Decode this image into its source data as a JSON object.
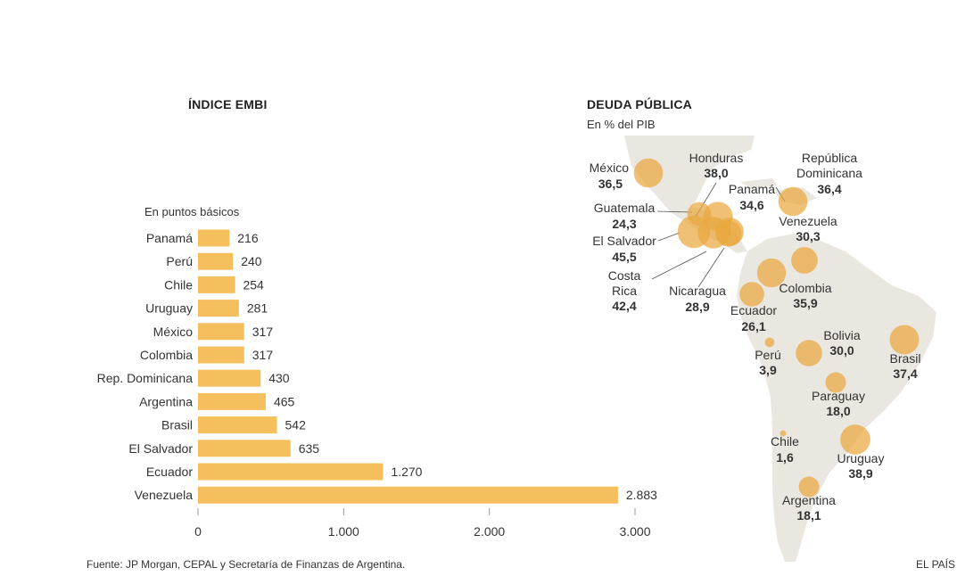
{
  "left": {
    "title": "ÍNDICE EMBI",
    "subtitle": "En puntos básicos"
  },
  "right": {
    "title": "DEUDA PÚBLICA",
    "subtitle": "En % del PIB"
  },
  "footer": {
    "source": "Fuente: JP Morgan, CEPAL y Secretaría de Finanzas de Argentina.",
    "brand": "EL PAÍS"
  },
  "colors": {
    "bar": "#f6bf5e",
    "bubble": "#eaa73f",
    "land": "#e9e7df",
    "text": "#333333"
  },
  "chart_data": [
    {
      "type": "bar",
      "orientation": "horizontal",
      "title": "ÍNDICE EMBI",
      "subtitle": "En puntos básicos",
      "categories": [
        "Panamá",
        "Perú",
        "Chile",
        "Uruguay",
        "México",
        "Colombia",
        "Rep. Dominicana",
        "Argentina",
        "Brasil",
        "El Salvador",
        "Ecuador",
        "Venezuela"
      ],
      "values": [
        216,
        240,
        254,
        281,
        317,
        317,
        430,
        465,
        542,
        635,
        1270,
        2883
      ],
      "value_labels": [
        "216",
        "240",
        "254",
        "281",
        "317",
        "317",
        "430",
        "465",
        "542",
        "635",
        "1.270",
        "2.883"
      ],
      "xlim": [
        0,
        3000
      ],
      "ticks": [
        0,
        1000,
        2000,
        3000
      ],
      "tick_labels": [
        "0",
        "1.000",
        "2.000",
        "3.000"
      ],
      "grid": false
    },
    {
      "type": "scatter",
      "subtype": "bubble-map",
      "title": "DEUDA PÚBLICA",
      "subtitle": "En % del PIB",
      "points": [
        {
          "country": "México",
          "value": 36.5,
          "label": "36,5"
        },
        {
          "country": "Honduras",
          "value": 38.0,
          "label": "38,0"
        },
        {
          "country": "República Dominicana",
          "value": 36.4,
          "label": "36,4"
        },
        {
          "country": "Guatemala",
          "value": 24.3,
          "label": "24,3"
        },
        {
          "country": "Panamá",
          "value": 34.6,
          "label": "34,6"
        },
        {
          "country": "El Salvador",
          "value": 45.5,
          "label": "45,5"
        },
        {
          "country": "Costa Rica",
          "value": 42.4,
          "label": "42,4"
        },
        {
          "country": "Nicaragua",
          "value": 28.9,
          "label": "28,9"
        },
        {
          "country": "Venezuela",
          "value": 30.3,
          "label": "30,3"
        },
        {
          "country": "Colombia",
          "value": 35.9,
          "label": "35,9"
        },
        {
          "country": "Ecuador",
          "value": 26.1,
          "label": "26,1"
        },
        {
          "country": "Perú",
          "value": 3.9,
          "label": "3,9"
        },
        {
          "country": "Bolivia",
          "value": 30.0,
          "label": "30,0"
        },
        {
          "country": "Brasil",
          "value": 37.4,
          "label": "37,4"
        },
        {
          "country": "Paraguay",
          "value": 18.0,
          "label": "18,0"
        },
        {
          "country": "Chile",
          "value": 1.6,
          "label": "1,6"
        },
        {
          "country": "Uruguay",
          "value": 38.9,
          "label": "38,9"
        },
        {
          "country": "Argentina",
          "value": 18.1,
          "label": "18,1"
        }
      ]
    }
  ]
}
